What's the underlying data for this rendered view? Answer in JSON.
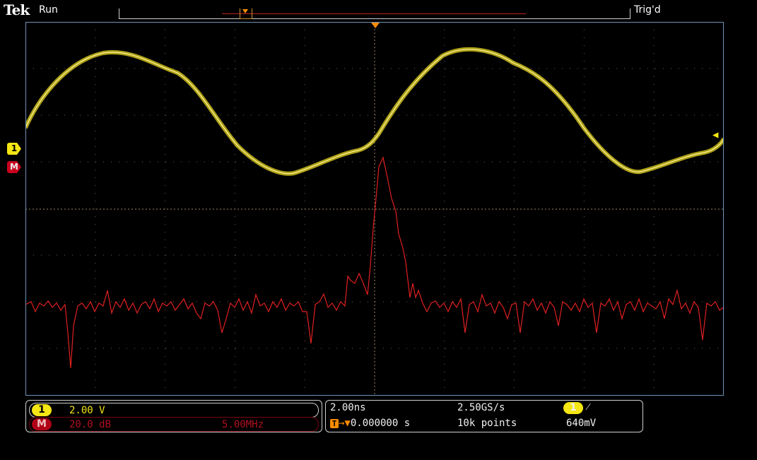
{
  "status": {
    "brand": "Tek",
    "acquisition": "Run",
    "trigger_state": "Trig'd"
  },
  "markers": {
    "ch1": "1",
    "math": "M"
  },
  "vertical": {
    "ch1": {
      "badge": "1",
      "scale": "2.00 V",
      "color": "#f5e614"
    },
    "math": {
      "badge": "M",
      "scale": "20.0 dB",
      "span": "5.00MHz",
      "color": "#e02020"
    }
  },
  "horizontal": {
    "time_per_div": "2.00ns",
    "trigger_position": "0.000000 s",
    "sample_rate": "2.50GS/s",
    "record_length": "10k points"
  },
  "trigger": {
    "source_badge": "1",
    "slope_icon": "rising-edge-icon",
    "level": "640mV"
  },
  "colors": {
    "grid": "#7a6a50",
    "frame": "#6f93b8",
    "trigger": "#ff8c00"
  }
}
